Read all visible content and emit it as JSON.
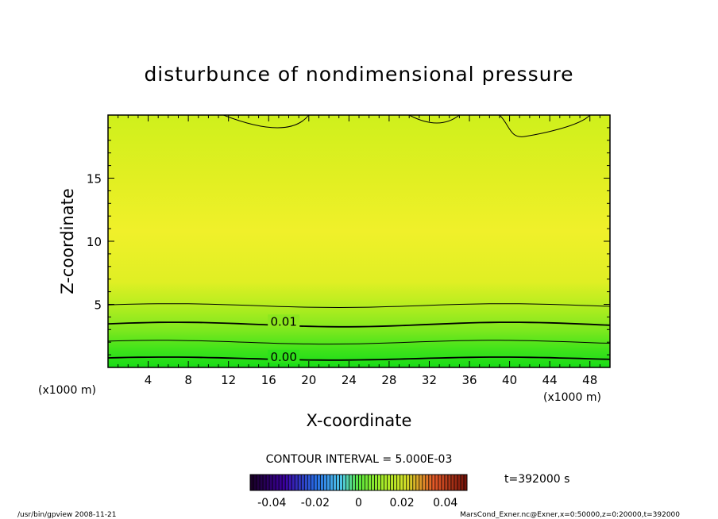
{
  "chart_data": {
    "type": "contour",
    "title": "disturbunce of nondimensional pressure",
    "xlabel": "X-coordinate",
    "ylabel": "Z-coordinate",
    "x_unit_left": "(x1000 m)",
    "x_unit_right": "(x1000 m)",
    "xlim": [
      0,
      50
    ],
    "ylim": [
      0,
      20
    ],
    "x_ticks": [
      4,
      8,
      12,
      16,
      20,
      24,
      28,
      32,
      36,
      40,
      44,
      48
    ],
    "y_ticks": [
      5,
      10,
      15
    ],
    "contour_labels": [
      {
        "text": "0.01",
        "x": 17.5,
        "y": 3.5
      },
      {
        "text": "0.00",
        "x": 17.5,
        "y": 0.7
      }
    ],
    "contour_interval_label": "CONTOUR INTERVAL = 5.000E-03",
    "colorbar": {
      "min": -0.05,
      "max": 0.05,
      "tick_labels": [
        "-0.04",
        "-0.02",
        "0",
        "0.02",
        "0.04"
      ],
      "tick_values": [
        -0.04,
        -0.02,
        0,
        0.02,
        0.04
      ]
    },
    "time_label": "t=392000 s",
    "footer_left": "/usr/bin/gpview   2008-11-21",
    "footer_right": "MarsCond_Exner.nc@Exner,x=0:50000,z=0:20000,t=392000"
  }
}
